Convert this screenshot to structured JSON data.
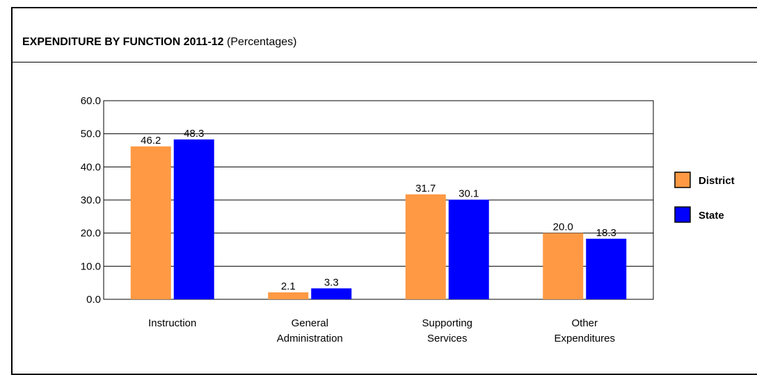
{
  "chart_data": {
    "type": "bar",
    "title": "EXPENDITURE BY FUNCTION 2011-12",
    "subtitle": "(Percentages)",
    "categories": [
      [
        "Instruction"
      ],
      [
        "General",
        "Administration"
      ],
      [
        "Supporting",
        "Services"
      ],
      [
        "Other",
        "Expenditures"
      ]
    ],
    "series": [
      {
        "name": "District",
        "color": "#FF9944",
        "values": [
          46.2,
          2.1,
          31.7,
          20.0
        ]
      },
      {
        "name": "State",
        "color": "#0000FF",
        "values": [
          48.3,
          3.3,
          30.1,
          18.3
        ]
      }
    ],
    "ylim": [
      0,
      60
    ],
    "yticks": [
      "0.0",
      "10.0",
      "20.0",
      "30.0",
      "40.0",
      "50.0",
      "60.0"
    ],
    "grid": true,
    "legend": "right"
  }
}
